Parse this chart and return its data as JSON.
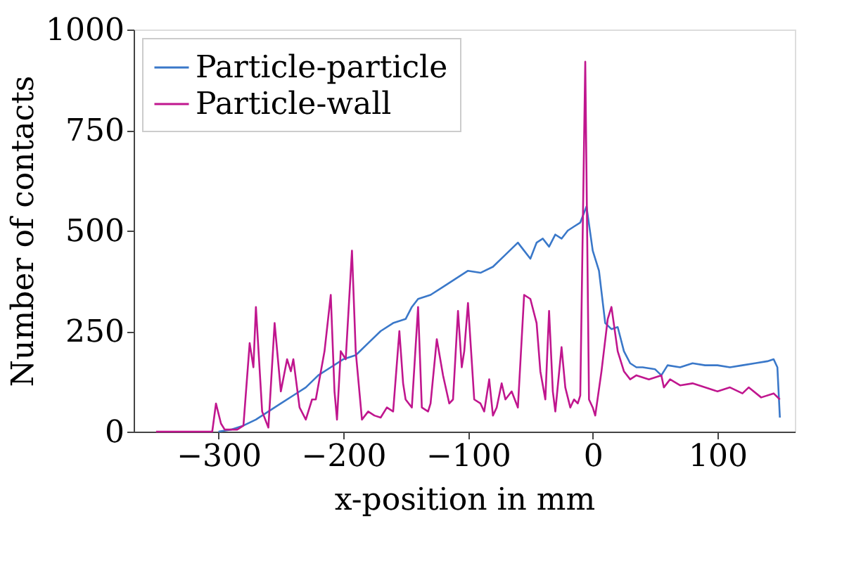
{
  "chart_data": {
    "type": "line",
    "xlabel": "x-position in mm",
    "ylabel": "Number of contacts",
    "xlim": [
      -368,
      162
    ],
    "ylim": [
      0,
      1000
    ],
    "xticks": [
      -300,
      -200,
      -100,
      0,
      100
    ],
    "yticks": [
      0,
      250,
      500,
      750,
      1000
    ],
    "grid": false,
    "legend": "top left",
    "line_style": "solid",
    "marker": "none",
    "series": [
      {
        "name": "Particle-particle",
        "color": "#3a78c9",
        "x": [
          -300,
          -290,
          -280,
          -270,
          -260,
          -250,
          -240,
          -230,
          -220,
          -210,
          -200,
          -190,
          -180,
          -170,
          -160,
          -150,
          -145,
          -140,
          -130,
          -120,
          -110,
          -100,
          -90,
          -80,
          -70,
          -60,
          -55,
          -50,
          -45,
          -40,
          -35,
          -30,
          -25,
          -20,
          -15,
          -10,
          -5,
          0,
          5,
          10,
          15,
          20,
          25,
          30,
          35,
          40,
          50,
          55,
          60,
          70,
          80,
          90,
          100,
          110,
          120,
          130,
          140,
          145,
          148,
          150
        ],
        "values": [
          0,
          5,
          15,
          30,
          50,
          70,
          90,
          110,
          140,
          160,
          180,
          190,
          220,
          250,
          270,
          280,
          310,
          330,
          340,
          360,
          380,
          400,
          395,
          410,
          440,
          470,
          450,
          430,
          470,
          480,
          460,
          490,
          480,
          500,
          510,
          520,
          560,
          450,
          400,
          270,
          255,
          260,
          200,
          170,
          160,
          160,
          155,
          140,
          165,
          160,
          170,
          165,
          165,
          160,
          165,
          170,
          175,
          180,
          160,
          35
        ]
      },
      {
        "name": "Particle-wall",
        "color": "#c0168e",
        "x": [
          -350,
          -305,
          -302,
          -298,
          -295,
          -285,
          -280,
          -275,
          -272,
          -270,
          -265,
          -260,
          -255,
          -250,
          -245,
          -242,
          -240,
          -235,
          -230,
          -225,
          -222,
          -215,
          -210,
          -207,
          -205,
          -202,
          -198,
          -193,
          -190,
          -185,
          -180,
          -175,
          -170,
          -165,
          -160,
          -155,
          -152,
          -150,
          -145,
          -140,
          -137,
          -132,
          -130,
          -125,
          -120,
          -115,
          -112,
          -108,
          -105,
          -103,
          -100,
          -95,
          -90,
          -87,
          -83,
          -80,
          -77,
          -73,
          -70,
          -65,
          -60,
          -55,
          -50,
          -45,
          -42,
          -38,
          -35,
          -32,
          -30,
          -25,
          -22,
          -18,
          -15,
          -12,
          -10,
          -6,
          -3,
          0,
          2,
          7,
          12,
          15,
          20,
          25,
          30,
          35,
          45,
          55,
          57,
          62,
          70,
          80,
          90,
          100,
          110,
          120,
          125,
          135,
          145,
          150
        ],
        "values": [
          0,
          0,
          70,
          20,
          5,
          5,
          15,
          220,
          160,
          310,
          50,
          10,
          270,
          100,
          180,
          150,
          180,
          60,
          30,
          80,
          80,
          200,
          340,
          100,
          30,
          200,
          180,
          450,
          200,
          30,
          50,
          40,
          35,
          60,
          50,
          250,
          120,
          80,
          60,
          310,
          60,
          50,
          70,
          230,
          140,
          70,
          80,
          300,
          160,
          200,
          320,
          80,
          70,
          50,
          130,
          40,
          60,
          120,
          80,
          100,
          60,
          340,
          330,
          270,
          150,
          80,
          300,
          100,
          50,
          210,
          110,
          60,
          80,
          70,
          90,
          920,
          80,
          60,
          40,
          150,
          280,
          310,
          200,
          150,
          130,
          140,
          130,
          140,
          110,
          130,
          115,
          120,
          110,
          100,
          110,
          95,
          110,
          85,
          95,
          80
        ]
      }
    ]
  }
}
